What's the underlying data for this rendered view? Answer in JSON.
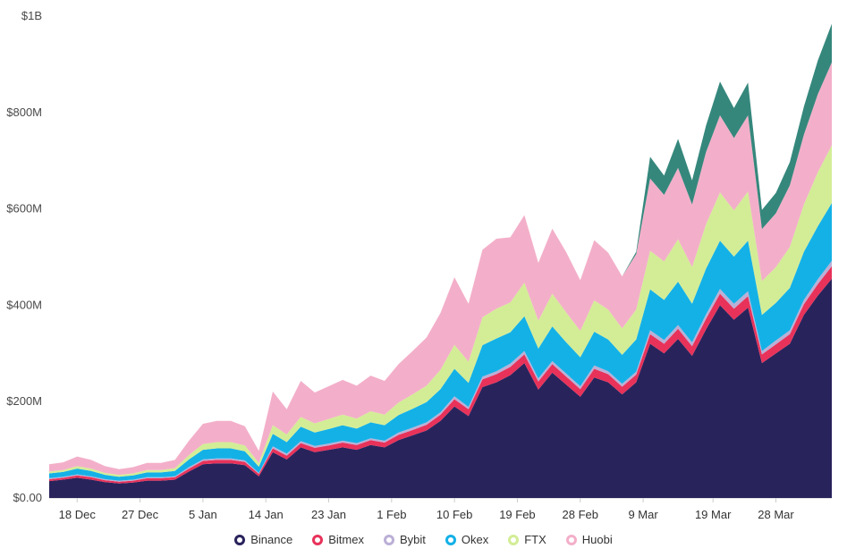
{
  "page": {
    "background": "#ffffff"
  },
  "chart_data": {
    "type": "area",
    "stacked": true,
    "title": "",
    "xlabel": "",
    "ylabel": "",
    "ymax": 1000,
    "y_unit_note": "values in millions of USD",
    "grid": "off",
    "legend_position": "bottom",
    "x_days": [
      0,
      2,
      4,
      6,
      8,
      10,
      12,
      14,
      16,
      18,
      20,
      22,
      24,
      26,
      28,
      30,
      32,
      34,
      36,
      38,
      40,
      42,
      44,
      46,
      48,
      50,
      52,
      54,
      56,
      58,
      60,
      62,
      64,
      66,
      68,
      70,
      72,
      74,
      76,
      78,
      80,
      82,
      84,
      86,
      88,
      90,
      92,
      94,
      96,
      98,
      100,
      102,
      104,
      106,
      108,
      110,
      112
    ],
    "x_ticks": [
      {
        "day": 4,
        "label": "18 Dec"
      },
      {
        "day": 13,
        "label": "27 Dec"
      },
      {
        "day": 22,
        "label": "5 Jan"
      },
      {
        "day": 31,
        "label": "14 Jan"
      },
      {
        "day": 40,
        "label": "23 Jan"
      },
      {
        "day": 49,
        "label": "1 Feb"
      },
      {
        "day": 58,
        "label": "10 Feb"
      },
      {
        "day": 67,
        "label": "19 Feb"
      },
      {
        "day": 76,
        "label": "28 Feb"
      },
      {
        "day": 85,
        "label": "9 Mar"
      },
      {
        "day": 95,
        "label": "19 Mar"
      },
      {
        "day": 104,
        "label": "28 Mar"
      }
    ],
    "y_ticks": [
      {
        "value": 0,
        "label": "$0.00"
      },
      {
        "value": 200,
        "label": "$200M"
      },
      {
        "value": 400,
        "label": "$400M"
      },
      {
        "value": 600,
        "label": "$600M"
      },
      {
        "value": 800,
        "label": "$800M"
      },
      {
        "value": 1000,
        "label": "$1B"
      }
    ],
    "series": [
      {
        "name": "Binance",
        "key": "binance",
        "color": "#29235C",
        "values": [
          35,
          38,
          42,
          38,
          33,
          30,
          32,
          36,
          36,
          38,
          55,
          70,
          72,
          72,
          68,
          45,
          95,
          80,
          105,
          95,
          100,
          105,
          100,
          110,
          105,
          120,
          130,
          140,
          160,
          190,
          170,
          230,
          240,
          255,
          280,
          225,
          260,
          235,
          210,
          250,
          240,
          215,
          240,
          320,
          300,
          330,
          295,
          350,
          400,
          370,
          395,
          280,
          300,
          320,
          380,
          420,
          455
        ]
      },
      {
        "name": "Bitmex",
        "key": "bitmex",
        "color": "#E8325A",
        "values": [
          4,
          4,
          5,
          5,
          4,
          4,
          4,
          5,
          5,
          5,
          6,
          7,
          7,
          7,
          7,
          5,
          8,
          8,
          9,
          9,
          9,
          10,
          10,
          10,
          10,
          11,
          11,
          12,
          13,
          15,
          14,
          16,
          17,
          17,
          18,
          17,
          18,
          17,
          16,
          18,
          17,
          16,
          16,
          20,
          20,
          21,
          20,
          22,
          24,
          23,
          24,
          18,
          19,
          20,
          22,
          24,
          26
        ]
      },
      {
        "name": "Bybit",
        "key": "bybit",
        "color": "#BBAFD6",
        "values": [
          2,
          2,
          2,
          2,
          2,
          2,
          2,
          2,
          2,
          2,
          3,
          3,
          3,
          3,
          3,
          2,
          4,
          4,
          4,
          4,
          4,
          4,
          4,
          4,
          4,
          5,
          5,
          5,
          5,
          6,
          5,
          6,
          6,
          7,
          7,
          6,
          6,
          6,
          6,
          7,
          6,
          6,
          6,
          8,
          8,
          8,
          8,
          9,
          10,
          10,
          10,
          7,
          8,
          8,
          9,
          10,
          11
        ]
      },
      {
        "name": "Okex",
        "key": "okex",
        "color": "#14B1E7",
        "values": [
          10,
          10,
          12,
          11,
          9,
          8,
          9,
          10,
          10,
          11,
          16,
          20,
          21,
          21,
          19,
          13,
          26,
          24,
          30,
          28,
          30,
          32,
          30,
          33,
          32,
          36,
          39,
          42,
          48,
          57,
          50,
          65,
          68,
          65,
          72,
          62,
          72,
          65,
          60,
          70,
          66,
          60,
          67,
          85,
          83,
          90,
          80,
          95,
          100,
          98,
          105,
          75,
          78,
          88,
          100,
          110,
          120
        ]
      },
      {
        "name": "FTX",
        "key": "ftx",
        "color": "#D3ED96",
        "values": [
          4,
          4,
          5,
          5,
          4,
          4,
          4,
          5,
          5,
          6,
          9,
          12,
          13,
          13,
          12,
          8,
          18,
          16,
          20,
          19,
          21,
          22,
          21,
          23,
          22,
          26,
          30,
          34,
          40,
          50,
          44,
          58,
          62,
          62,
          70,
          58,
          68,
          62,
          55,
          65,
          62,
          55,
          62,
          80,
          80,
          88,
          76,
          92,
          100,
          96,
          102,
          70,
          74,
          85,
          98,
          112,
          120
        ]
      },
      {
        "name": "Huobi",
        "key": "huobi",
        "color": "#F3AFC9",
        "values": [
          15,
          16,
          20,
          18,
          14,
          12,
          13,
          15,
          15,
          17,
          30,
          42,
          44,
          44,
          40,
          25,
          70,
          52,
          75,
          64,
          68,
          72,
          68,
          74,
          70,
          80,
          90,
          100,
          118,
          140,
          120,
          140,
          145,
          135,
          140,
          120,
          135,
          125,
          105,
          125,
          118,
          108,
          115,
          150,
          138,
          148,
          130,
          150,
          160,
          150,
          158,
          108,
          112,
          128,
          145,
          162,
          172
        ]
      },
      {
        "name": "",
        "key": "unlabeled-teal",
        "color": "#35877C",
        "values": [
          0,
          0,
          0,
          0,
          0,
          0,
          0,
          0,
          0,
          0,
          0,
          0,
          0,
          0,
          0,
          0,
          0,
          0,
          0,
          0,
          0,
          0,
          0,
          0,
          0,
          0,
          0,
          0,
          0,
          0,
          0,
          0,
          0,
          0,
          0,
          0,
          0,
          0,
          0,
          0,
          0,
          0,
          5,
          45,
          40,
          60,
          50,
          55,
          70,
          62,
          68,
          40,
          42,
          48,
          58,
          70,
          80
        ]
      }
    ]
  },
  "legend": {
    "items": [
      {
        "label": "Binance",
        "color": "#29235C"
      },
      {
        "label": "Bitmex",
        "color": "#E8325A"
      },
      {
        "label": "Bybit",
        "color": "#BBAFD6"
      },
      {
        "label": "Okex",
        "color": "#14B1E7"
      },
      {
        "label": "FTX",
        "color": "#D3ED96"
      },
      {
        "label": "Huobi",
        "color": "#F3AFC9"
      }
    ]
  }
}
